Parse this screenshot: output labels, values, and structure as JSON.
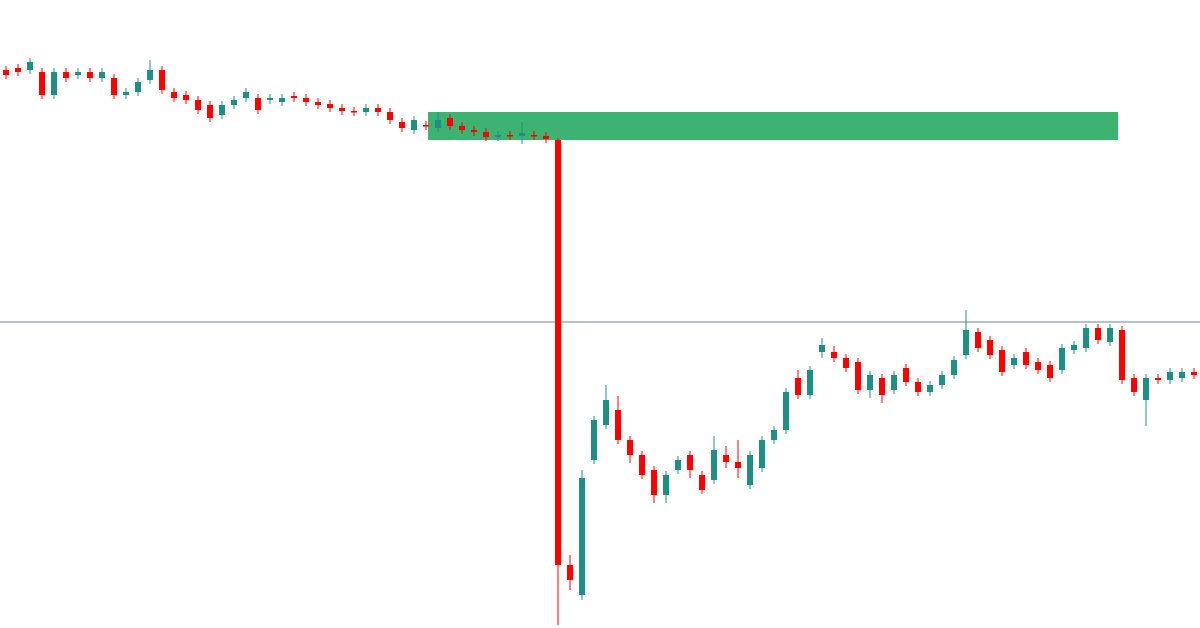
{
  "chart_data": {
    "type": "candlestick",
    "open": [
      558,
      560,
      558,
      556,
      533,
      556,
      553,
      556,
      550,
      550,
      533,
      536,
      548,
      558,
      536,
      533,
      528,
      523,
      513,
      523,
      530,
      530,
      528,
      526,
      532,
      530,
      526,
      524,
      520,
      517,
      516,
      520,
      516,
      506,
      498,
      503,
      500,
      510,
      502,
      498,
      496,
      491,
      493,
      492,
      493,
      492,
      488,
      63,
      33,
      168,
      203,
      218,
      188,
      173,
      158,
      133,
      158,
      173,
      153,
      148,
      173,
      166,
      143,
      160,
      188,
      198,
      250,
      233,
      276,
      276,
      270,
      266,
      238,
      250,
      238,
      260,
      246,
      236,
      243,
      253,
      273,
      296,
      288,
      278,
      263,
      276,
      266,
      263,
      258,
      278,
      280,
      300,
      286,
      298,
      250,
      228,
      250,
      248,
      250,
      256
    ],
    "high": [
      562,
      564,
      570,
      560,
      560,
      560,
      560,
      560,
      560,
      554,
      540,
      550,
      568,
      562,
      540,
      537,
      532,
      527,
      527,
      532,
      540,
      534,
      534,
      534,
      536,
      534,
      530,
      528,
      524,
      521,
      524,
      524,
      520,
      510,
      512,
      507,
      516,
      514,
      506,
      502,
      500,
      497,
      497,
      506,
      497,
      496,
      490,
      73,
      158,
      212,
      243,
      232,
      192,
      177,
      162,
      157,
      172,
      177,
      157,
      192,
      182,
      188,
      177,
      192,
      202,
      240,
      258,
      262,
      290,
      282,
      274,
      270,
      257,
      254,
      257,
      264,
      250,
      247,
      257,
      272,
      318,
      300,
      292,
      282,
      274,
      280,
      270,
      267,
      284,
      287,
      304,
      304,
      304,
      302,
      254,
      254,
      254,
      260,
      260,
      260
    ],
    "low": [
      549,
      552,
      554,
      529,
      529,
      546,
      549,
      546,
      546,
      529,
      529,
      532,
      544,
      534,
      526,
      524,
      514,
      506,
      509,
      519,
      526,
      514,
      524,
      522,
      526,
      522,
      519,
      516,
      513,
      512,
      512,
      512,
      504,
      496,
      494,
      498,
      496,
      498,
      494,
      492,
      487,
      487,
      488,
      484,
      488,
      485,
      3,
      38,
      28,
      164,
      199,
      184,
      165,
      149,
      125,
      125,
      154,
      150,
      134,
      144,
      160,
      150,
      139,
      156,
      184,
      194,
      229,
      229,
      270,
      266,
      256,
      234,
      230,
      225,
      234,
      242,
      232,
      232,
      239,
      249,
      269,
      276,
      269,
      252,
      259,
      259,
      254,
      246,
      254,
      274,
      276,
      284,
      282,
      244,
      232,
      202,
      244,
      244,
      246,
      249
    ],
    "close": [
      553,
      556,
      566,
      533,
      556,
      550,
      556,
      550,
      556,
      533,
      536,
      546,
      558,
      538,
      530,
      528,
      518,
      510,
      523,
      528,
      536,
      518,
      530,
      530,
      530,
      526,
      523,
      520,
      517,
      516,
      520,
      516,
      508,
      500,
      508,
      502,
      508,
      502,
      498,
      496,
      491,
      493,
      492,
      495,
      492,
      489,
      63,
      48,
      150,
      208,
      228,
      188,
      173,
      153,
      133,
      153,
      168,
      158,
      138,
      178,
      166,
      160,
      173,
      188,
      198,
      236,
      233,
      258,
      283,
      270,
      260,
      238,
      253,
      233,
      253,
      246,
      236,
      243,
      253,
      268,
      298,
      280,
      273,
      256,
      270,
      263,
      258,
      250,
      280,
      283,
      300,
      288,
      300,
      248,
      236,
      250,
      248,
      256,
      256,
      253
    ],
    "up_color": "#1f8f86",
    "down_color": "#ff0000",
    "ylim": [
      0,
      628
    ],
    "level": {
      "value": 306,
      "color": "#71849a"
    },
    "zone": {
      "low": 488,
      "high": 516,
      "color": "#3cb371"
    }
  }
}
